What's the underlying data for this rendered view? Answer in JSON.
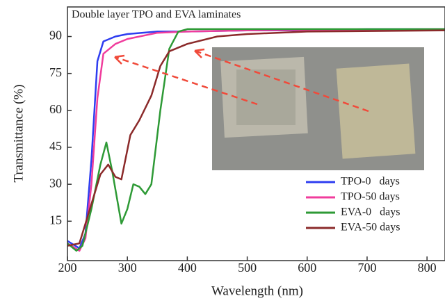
{
  "chart_data": {
    "type": "line",
    "title": "Double layer TPO and EVA laminates",
    "x_label": "Wavelength (nm)",
    "y_label": "Transmittance (%)",
    "xlim": [
      200,
      830
    ],
    "ylim": [
      -1,
      102
    ],
    "xticks": [
      200,
      300,
      400,
      500,
      600,
      700,
      800
    ],
    "yticks": [
      15,
      30,
      45,
      60,
      75,
      90
    ],
    "legend": "lower right",
    "series": [
      {
        "name": "TPO-0   days",
        "color": "#2e3df0",
        "x": [
          200,
          220,
          230,
          240,
          250,
          260,
          280,
          300,
          350,
          400,
          500,
          600,
          700,
          830
        ],
        "values": [
          7,
          4,
          10,
          40,
          80,
          88,
          90,
          91,
          92,
          92,
          92.5,
          92.5,
          93,
          93
        ]
      },
      {
        "name": "TPO-50 days",
        "color": "#f03c9c",
        "x": [
          200,
          220,
          230,
          240,
          250,
          260,
          280,
          300,
          350,
          400,
          500,
          830
        ],
        "values": [
          6,
          3,
          8,
          30,
          65,
          83,
          87,
          89,
          91.5,
          92,
          92.5,
          93
        ]
      },
      {
        "name": "EVA-0   days",
        "color": "#2e9a36",
        "x": [
          200,
          215,
          225,
          240,
          255,
          265,
          275,
          290,
          300,
          310,
          320,
          330,
          340,
          355,
          370,
          385,
          400,
          500,
          830
        ],
        "values": [
          6,
          3,
          5,
          20,
          38,
          47,
          35,
          14,
          20,
          30,
          29,
          26,
          30,
          60,
          85,
          92,
          93,
          93,
          93
        ]
      },
      {
        "name": "EVA-50 days",
        "color": "#8b2a2a",
        "x": [
          200,
          220,
          240,
          255,
          268,
          280,
          290,
          305,
          320,
          340,
          355,
          370,
          400,
          450,
          500,
          600,
          830
        ],
        "values": [
          5,
          6,
          22,
          34,
          38,
          33,
          32,
          50,
          56,
          66,
          78,
          84,
          87,
          90,
          91,
          92,
          92.5
        ]
      }
    ]
  }
}
